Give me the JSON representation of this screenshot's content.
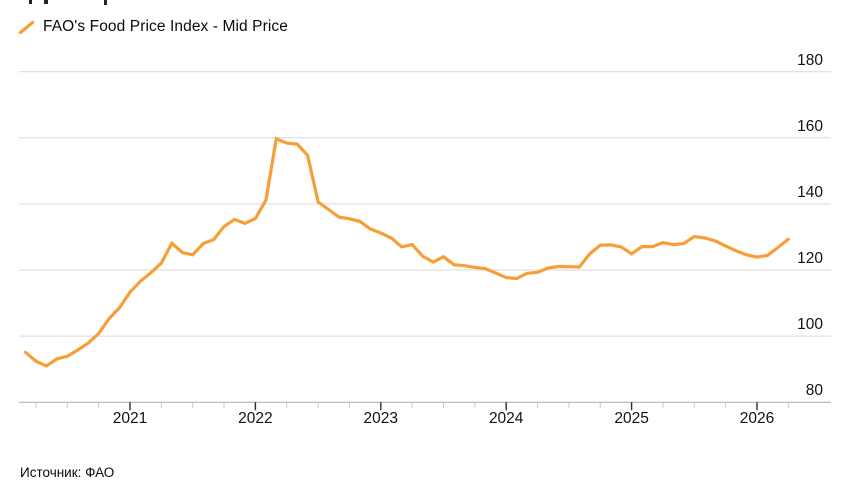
{
  "legend": {
    "label": "FAO's Food Price Index - Mid Price"
  },
  "source_note": "Источник: ФАО",
  "colors": {
    "line": "#F79E37",
    "gridline": "#D9D9D9",
    "axis_line": "#A9A9A9",
    "major_tick": "#2B2B2B",
    "minor_tick": "#C6C6C6",
    "label_text": "#121212",
    "background": "#FFFFFF"
  },
  "chart_data": {
    "type": "line",
    "title": "FAO's Food Price Index - Mid Price",
    "legend_position": "top-left",
    "grid": "horizontal",
    "ylim": [
      80,
      180
    ],
    "yticks": [
      80,
      100,
      120,
      140,
      160,
      180
    ],
    "xticks": [
      "2021",
      "2022",
      "2023",
      "2024",
      "2025",
      "2026"
    ],
    "x_minor_ticks": "quarterly",
    "series": [
      {
        "name": "FAO's Food Price Index - Mid Price",
        "color": "#F79E37",
        "months": [
          "2020-03",
          "2020-04",
          "2020-05",
          "2020-06",
          "2020-07",
          "2020-08",
          "2020-09",
          "2020-10",
          "2020-11",
          "2020-12",
          "2021-01",
          "2021-02",
          "2021-03",
          "2021-04",
          "2021-05",
          "2021-06",
          "2021-07",
          "2021-08",
          "2021-09",
          "2021-10",
          "2021-11",
          "2021-12",
          "2022-01",
          "2022-02",
          "2022-03",
          "2022-04",
          "2022-05",
          "2022-06",
          "2022-07",
          "2022-08",
          "2022-09",
          "2022-10",
          "2022-11",
          "2022-12",
          "2023-01",
          "2023-02",
          "2023-03",
          "2023-04",
          "2023-05",
          "2023-06",
          "2023-07",
          "2023-08",
          "2023-09",
          "2023-10",
          "2023-11",
          "2023-12",
          "2024-01",
          "2024-02",
          "2024-03",
          "2024-04",
          "2024-05",
          "2024-06",
          "2024-07",
          "2024-08",
          "2024-09",
          "2024-10",
          "2024-11",
          "2024-12",
          "2025-01",
          "2025-02",
          "2025-03",
          "2025-04",
          "2025-05",
          "2025-06",
          "2025-07",
          "2025-08",
          "2025-09",
          "2025-10",
          "2025-11",
          "2025-12",
          "2026-01",
          "2026-02",
          "2026-03",
          "2026-04"
        ],
        "values": [
          95.1,
          92.4,
          91.0,
          93.1,
          93.9,
          95.8,
          97.9,
          100.8,
          105.3,
          108.6,
          113.3,
          116.6,
          119.2,
          122.1,
          128.1,
          125.3,
          124.6,
          128.0,
          129.2,
          133.2,
          135.3,
          134.1,
          135.6,
          141.1,
          159.7,
          158.4,
          158.1,
          154.7,
          140.6,
          138.3,
          136.0,
          135.5,
          134.7,
          132.4,
          131.2,
          129.7,
          127.0,
          127.7,
          124.2,
          122.4,
          124.0,
          121.6,
          121.3,
          120.8,
          120.4,
          119.1,
          117.7,
          117.4,
          119.0,
          119.3,
          120.6,
          121.1,
          121.0,
          120.9,
          124.9,
          127.5,
          127.6,
          127.0,
          124.9,
          127.1,
          127.1,
          128.3,
          127.7,
          128.0,
          130.1,
          129.7,
          128.8,
          127.3,
          125.8,
          124.6,
          123.9,
          124.4,
          126.8,
          129.3
        ]
      }
    ]
  }
}
